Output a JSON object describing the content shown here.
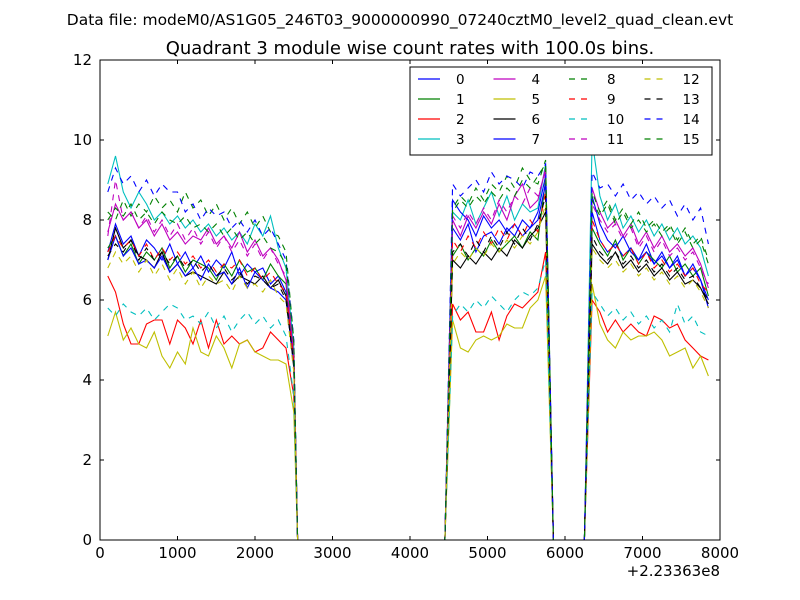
{
  "chart_data": {
    "type": "line",
    "suptitle": "Data file: modeM0/AS1G05_246T03_9000000990_07240cztM0_level2_quad_clean.evt",
    "title": "Quadrant 3 module wise count rates with 100.0s bins.",
    "xlabel": "",
    "ylabel": "",
    "x_offset_label": "+2.23363e8",
    "xlim": [
      0,
      8000
    ],
    "ylim": [
      0,
      12
    ],
    "x_ticks": [
      0,
      1000,
      2000,
      3000,
      4000,
      5000,
      6000,
      7000,
      8000
    ],
    "y_ticks": [
      0,
      2,
      4,
      6,
      8,
      10,
      12
    ],
    "legend_position": "top-right",
    "legend_columns": 4,
    "gap_x": [
      2600,
      2700,
      2800,
      2900,
      3000,
      3100,
      3200,
      3300,
      3400,
      3500,
      3600,
      3700,
      3800,
      3900,
      4000,
      4100,
      4200,
      4300,
      4400
    ],
    "seg1_x": [
      100,
      200,
      300,
      400,
      500,
      600,
      700,
      800,
      900,
      1000,
      1100,
      1200,
      1300,
      1400,
      1500,
      1600,
      1700,
      1800,
      1900,
      2000,
      2100,
      2200,
      2300,
      2400,
      2500,
      2550
    ],
    "seg2_x": [
      4450,
      4550,
      4650,
      4750,
      4850,
      4950,
      5050,
      5150,
      5250,
      5350,
      5450,
      5550,
      5650,
      5750,
      5850,
      5950
    ],
    "seg3_x": [
      6250,
      6350,
      6450,
      6550,
      6650,
      6750,
      6850,
      6950,
      7050,
      7150,
      7250,
      7350,
      7450,
      7550,
      7650,
      7750,
      7850
    ],
    "series": [
      {
        "name": "0",
        "color": "#0000ff",
        "dash": "solid",
        "seg1": [
          7.2,
          7.9,
          7.4,
          7.6,
          7.1,
          7.5,
          7.3,
          7.0,
          7.4,
          6.9,
          7.2,
          6.8,
          7.1,
          6.7,
          7.0,
          6.8,
          7.2,
          6.6,
          6.9,
          6.7,
          6.8,
          6.4,
          6.6,
          6.2,
          4.6,
          0
        ],
        "seg2": [
          0,
          7.8,
          7.5,
          7.9,
          7.2,
          7.6,
          7.7,
          7.4,
          7.8,
          7.6,
          8.0,
          7.8,
          8.2,
          9.1,
          0,
          0
        ],
        "seg3": [
          0,
          8.6,
          7.9,
          7.5,
          7.3,
          7.6,
          7.2,
          7.0,
          7.4,
          6.9,
          7.2,
          6.8,
          7.1,
          6.6,
          6.8,
          6.5,
          5.8
        ]
      },
      {
        "name": "1",
        "color": "#008000",
        "dash": "solid",
        "seg1": [
          7.3,
          7.6,
          7.1,
          7.4,
          6.9,
          7.2,
          7.0,
          7.3,
          6.8,
          7.1,
          6.7,
          7.0,
          6.9,
          6.8,
          6.5,
          6.9,
          6.6,
          7.0,
          6.7,
          6.8,
          6.5,
          6.9,
          6.6,
          6.4,
          4.5,
          0
        ],
        "seg2": [
          0,
          7.1,
          7.4,
          7.0,
          7.3,
          7.1,
          7.5,
          7.2,
          7.4,
          7.6,
          7.3,
          7.7,
          7.5,
          9.0,
          0,
          0
        ],
        "seg3": [
          0,
          7.8,
          7.4,
          7.1,
          7.5,
          7.0,
          7.3,
          6.9,
          7.2,
          7.0,
          6.8,
          7.1,
          6.7,
          6.9,
          6.6,
          6.8,
          6.1
        ]
      },
      {
        "name": "2",
        "color": "#ff0000",
        "dash": "solid",
        "seg1": [
          6.6,
          6.2,
          5.4,
          4.9,
          4.9,
          5.4,
          5.5,
          5.5,
          4.9,
          5.5,
          5.3,
          4.9,
          5.5,
          4.8,
          5.5,
          4.9,
          5.1,
          4.9,
          5.0,
          4.7,
          4.8,
          5.2,
          5.0,
          4.8,
          3.6,
          0
        ],
        "seg2": [
          0,
          5.9,
          5.5,
          5.7,
          5.2,
          5.2,
          5.7,
          5.0,
          5.6,
          5.9,
          5.8,
          6.0,
          6.2,
          7.2,
          0,
          0
        ],
        "seg3": [
          0,
          6.0,
          5.7,
          5.2,
          5.5,
          5.2,
          5.4,
          5.2,
          5.1,
          5.6,
          5.5,
          5.3,
          5.4,
          5.0,
          4.8,
          4.6,
          4.5
        ]
      },
      {
        "name": "3",
        "color": "#00bfbf",
        "dash": "solid",
        "seg1": [
          8.9,
          9.6,
          8.7,
          8.3,
          8.7,
          8.4,
          8.0,
          8.2,
          7.9,
          8.1,
          7.8,
          8.0,
          7.7,
          7.9,
          7.6,
          7.8,
          7.5,
          7.7,
          7.4,
          7.9,
          7.6,
          8.1,
          7.3,
          6.8,
          4.8,
          0
        ],
        "seg2": [
          0,
          8.2,
          8.0,
          8.5,
          7.9,
          8.3,
          8.7,
          8.1,
          8.6,
          8.0,
          8.4,
          8.2,
          8.3,
          9.4,
          0,
          0
        ],
        "seg3": [
          0,
          10.0,
          8.6,
          8.0,
          8.4,
          7.8,
          8.1,
          7.7,
          8.0,
          7.6,
          7.9,
          7.5,
          7.8,
          7.4,
          7.6,
          7.3,
          6.6
        ]
      },
      {
        "name": "4",
        "color": "#bf00bf",
        "dash": "solid",
        "seg1": [
          7.7,
          8.4,
          8.0,
          8.2,
          7.8,
          8.0,
          7.6,
          7.9,
          7.5,
          7.7,
          7.4,
          7.6,
          7.5,
          7.8,
          7.4,
          7.6,
          7.3,
          7.7,
          7.2,
          7.5,
          7.1,
          7.3,
          7.0,
          6.5,
          4.6,
          0
        ],
        "seg2": [
          0,
          8.0,
          7.6,
          8.1,
          7.8,
          8.2,
          7.9,
          8.4,
          8.0,
          8.6,
          8.9,
          8.3,
          8.5,
          9.3,
          0,
          0
        ],
        "seg3": [
          0,
          8.8,
          8.2,
          7.8,
          8.0,
          7.6,
          7.9,
          7.4,
          7.7,
          7.3,
          7.6,
          7.2,
          7.4,
          7.1,
          7.3,
          6.9,
          6.3
        ]
      },
      {
        "name": "5",
        "color": "#bfbf00",
        "dash": "solid",
        "seg1": [
          5.1,
          5.7,
          5.0,
          5.3,
          4.9,
          4.8,
          5.2,
          4.6,
          4.3,
          4.7,
          4.4,
          5.3,
          4.7,
          4.6,
          5.1,
          4.8,
          4.3,
          4.9,
          5.0,
          4.7,
          4.6,
          4.5,
          4.5,
          4.4,
          3.2,
          0
        ],
        "seg2": [
          0,
          5.5,
          4.8,
          4.7,
          5.0,
          5.1,
          5.0,
          5.1,
          5.4,
          5.3,
          5.3,
          5.8,
          6.0,
          6.6,
          0,
          0
        ],
        "seg3": [
          0,
          6.4,
          5.4,
          5.0,
          4.8,
          5.2,
          5.0,
          5.1,
          5.1,
          5.2,
          5.0,
          4.6,
          4.7,
          4.8,
          4.3,
          4.6,
          4.1
        ]
      },
      {
        "name": "6",
        "color": "#000000",
        "dash": "solid",
        "seg1": [
          7.0,
          7.8,
          7.3,
          7.5,
          7.1,
          7.0,
          6.8,
          7.2,
          6.7,
          6.9,
          6.6,
          6.7,
          6.6,
          6.5,
          6.4,
          6.7,
          6.4,
          6.6,
          6.5,
          6.4,
          6.6,
          6.3,
          6.5,
          6.1,
          4.3,
          0
        ],
        "seg2": [
          0,
          7.0,
          6.8,
          7.1,
          6.9,
          7.2,
          7.0,
          7.3,
          7.1,
          7.5,
          7.3,
          7.6,
          7.8,
          8.2,
          0,
          0
        ],
        "seg3": [
          0,
          7.4,
          7.1,
          6.9,
          7.2,
          6.8,
          7.0,
          6.7,
          6.9,
          6.6,
          6.8,
          6.5,
          6.7,
          6.4,
          6.5,
          6.3,
          5.9
        ]
      },
      {
        "name": "7",
        "color": "#0000ff",
        "dash": "solid",
        "seg1": [
          7.0,
          7.6,
          7.1,
          7.3,
          6.9,
          7.0,
          6.8,
          7.1,
          6.7,
          6.9,
          6.6,
          6.8,
          6.5,
          6.9,
          6.6,
          6.7,
          6.4,
          6.8,
          6.3,
          6.7,
          6.5,
          6.3,
          6.2,
          6.0,
          4.4,
          0
        ],
        "seg2": [
          0,
          8.5,
          8.2,
          8.0,
          7.6,
          8.1,
          7.8,
          8.0,
          7.7,
          7.9,
          7.6,
          7.8,
          8.0,
          8.9,
          0,
          0
        ],
        "seg3": [
          0,
          8.2,
          7.5,
          7.2,
          7.4,
          7.1,
          7.3,
          7.0,
          7.2,
          6.9,
          7.1,
          6.8,
          7.0,
          6.6,
          6.9,
          6.5,
          6.0
        ]
      },
      {
        "name": "8",
        "color": "#008000",
        "dash": "dashed",
        "seg1": [
          8.2,
          8.0,
          8.5,
          8.1,
          8.4,
          8.2,
          8.6,
          8.3,
          8.5,
          8.2,
          8.7,
          8.3,
          8.5,
          8.1,
          8.4,
          8.0,
          8.3,
          7.9,
          8.2,
          7.8,
          8.1,
          7.7,
          7.6,
          7.2,
          5.0,
          0
        ],
        "seg2": [
          0,
          8.3,
          8.6,
          8.4,
          8.8,
          8.5,
          8.9,
          8.7,
          9.1,
          8.8,
          9.3,
          9.0,
          8.9,
          9.5,
          0,
          0
        ],
        "seg3": [
          0,
          8.7,
          8.2,
          8.5,
          8.0,
          8.3,
          7.9,
          8.2,
          7.8,
          8.0,
          7.7,
          7.9,
          7.5,
          7.8,
          7.4,
          7.6,
          7.0
        ]
      },
      {
        "name": "9",
        "color": "#ff0000",
        "dash": "dashed",
        "seg1": [
          7.2,
          7.6,
          7.3,
          7.5,
          7.1,
          7.4,
          7.0,
          7.3,
          7.0,
          7.2,
          6.9,
          7.1,
          6.8,
          7.0,
          6.7,
          6.9,
          6.8,
          7.0,
          6.6,
          6.8,
          6.5,
          6.7,
          6.4,
          6.2,
          4.5,
          0
        ],
        "seg2": [
          0,
          7.5,
          7.2,
          7.6,
          7.3,
          7.7,
          7.4,
          7.8,
          7.5,
          7.9,
          7.6,
          8.0,
          7.7,
          8.7,
          0,
          0
        ],
        "seg3": [
          0,
          8.0,
          7.5,
          7.2,
          7.4,
          7.1,
          7.3,
          6.9,
          7.2,
          6.8,
          7.0,
          6.7,
          6.9,
          6.6,
          6.8,
          6.4,
          6.2
        ]
      },
      {
        "name": "10",
        "color": "#00bfbf",
        "dash": "dashed",
        "seg1": [
          5.8,
          5.6,
          5.9,
          5.7,
          5.6,
          5.8,
          5.5,
          5.7,
          5.9,
          5.8,
          5.5,
          5.6,
          5.4,
          5.7,
          5.3,
          5.6,
          5.2,
          5.5,
          5.7,
          5.4,
          5.6,
          5.3,
          5.5,
          5.1,
          3.6,
          0
        ],
        "seg2": [
          0,
          5.6,
          5.9,
          5.7,
          6.0,
          5.8,
          6.1,
          5.9,
          5.7,
          6.0,
          6.2,
          6.1,
          6.3,
          7.0,
          0,
          0
        ],
        "seg3": [
          0,
          6.2,
          5.9,
          5.6,
          5.8,
          5.5,
          5.7,
          5.4,
          5.6,
          5.3,
          5.5,
          5.2,
          5.9,
          5.4,
          5.6,
          5.2,
          5.1
        ]
      },
      {
        "name": "11",
        "color": "#bf00bf",
        "dash": "dashed",
        "seg1": [
          7.6,
          9.0,
          8.0,
          8.2,
          7.8,
          8.1,
          7.7,
          8.0,
          7.6,
          7.9,
          7.5,
          7.8,
          7.4,
          7.7,
          7.3,
          7.6,
          7.2,
          7.5,
          7.1,
          7.4,
          7.0,
          7.3,
          6.9,
          6.6,
          4.7,
          0
        ],
        "seg2": [
          0,
          8.1,
          7.8,
          8.2,
          7.9,
          8.3,
          8.0,
          8.5,
          8.2,
          8.6,
          8.4,
          8.8,
          8.6,
          9.2,
          0,
          0
        ],
        "seg3": [
          0,
          8.4,
          8.0,
          7.7,
          7.9,
          7.5,
          7.8,
          7.3,
          7.6,
          7.2,
          7.5,
          7.1,
          7.3,
          7.0,
          7.2,
          6.8,
          6.4
        ]
      },
      {
        "name": "12",
        "color": "#bfbf00",
        "dash": "dashed",
        "seg1": [
          6.8,
          7.2,
          6.9,
          7.1,
          6.7,
          7.0,
          6.6,
          6.9,
          6.5,
          6.8,
          6.4,
          6.7,
          6.3,
          6.6,
          6.4,
          6.5,
          6.2,
          6.6,
          6.3,
          6.4,
          6.2,
          6.5,
          6.1,
          5.9,
          4.2,
          0
        ],
        "seg2": [
          0,
          6.9,
          7.2,
          7.0,
          7.3,
          7.1,
          7.4,
          7.2,
          7.5,
          7.3,
          7.6,
          7.4,
          7.7,
          8.4,
          0,
          0
        ],
        "seg3": [
          0,
          7.3,
          7.0,
          6.8,
          7.0,
          6.7,
          6.9,
          6.6,
          6.8,
          6.5,
          6.7,
          6.4,
          6.6,
          6.3,
          6.5,
          6.2,
          5.8
        ]
      },
      {
        "name": "13",
        "color": "#000000",
        "dash": "dashed",
        "seg1": [
          7.1,
          7.4,
          7.2,
          7.5,
          7.0,
          7.3,
          7.0,
          7.2,
          6.9,
          7.1,
          6.8,
          7.0,
          6.7,
          6.9,
          6.6,
          6.8,
          6.5,
          6.7,
          6.4,
          6.6,
          6.5,
          6.3,
          6.4,
          6.0,
          4.4,
          0
        ],
        "seg2": [
          0,
          7.2,
          7.4,
          7.1,
          7.5,
          7.2,
          7.6,
          7.3,
          7.7,
          7.4,
          7.8,
          7.5,
          7.9,
          8.6,
          0,
          0
        ],
        "seg3": [
          0,
          7.6,
          7.2,
          7.0,
          7.2,
          6.9,
          7.1,
          6.8,
          7.0,
          6.7,
          6.9,
          6.6,
          6.8,
          6.5,
          6.6,
          6.3,
          6.0
        ]
      },
      {
        "name": "14",
        "color": "#0000ff",
        "dash": "dashed",
        "seg1": [
          8.7,
          9.3,
          8.9,
          9.1,
          8.7,
          9.0,
          8.6,
          8.9,
          8.7,
          8.7,
          8.2,
          8.4,
          8.0,
          8.3,
          8.1,
          8.2,
          7.8,
          8.0,
          7.7,
          8.0,
          7.6,
          7.8,
          7.4,
          7.0,
          5.0,
          0
        ],
        "seg2": [
          0,
          8.9,
          8.6,
          8.8,
          9.0,
          8.7,
          9.2,
          8.9,
          9.1,
          9.0,
          8.8,
          9.2,
          9.1,
          9.4,
          0,
          0
        ],
        "seg3": [
          0,
          9.2,
          8.8,
          8.9,
          8.6,
          8.9,
          8.5,
          8.7,
          8.4,
          8.6,
          8.3,
          8.5,
          8.1,
          8.4,
          8.0,
          8.3,
          7.4
        ]
      },
      {
        "name": "15",
        "color": "#008000",
        "dash": "dashed",
        "seg1": [
          8.0,
          8.3,
          8.1,
          8.4,
          8.0,
          8.2,
          7.9,
          8.2,
          8.0,
          7.9,
          8.1,
          7.8,
          7.9,
          7.7,
          7.9,
          7.6,
          7.8,
          7.5,
          7.7,
          7.4,
          7.6,
          7.3,
          7.2,
          6.9,
          4.9,
          0
        ],
        "seg2": [
          0,
          8.2,
          8.5,
          8.3,
          8.6,
          8.4,
          8.7,
          8.5,
          8.8,
          8.6,
          9.0,
          8.8,
          9.1,
          9.4,
          0,
          0
        ],
        "seg3": [
          0,
          8.5,
          8.1,
          8.4,
          7.9,
          8.2,
          7.8,
          8.0,
          7.7,
          7.9,
          7.6,
          7.8,
          7.4,
          7.7,
          7.3,
          7.5,
          6.9
        ]
      }
    ]
  }
}
